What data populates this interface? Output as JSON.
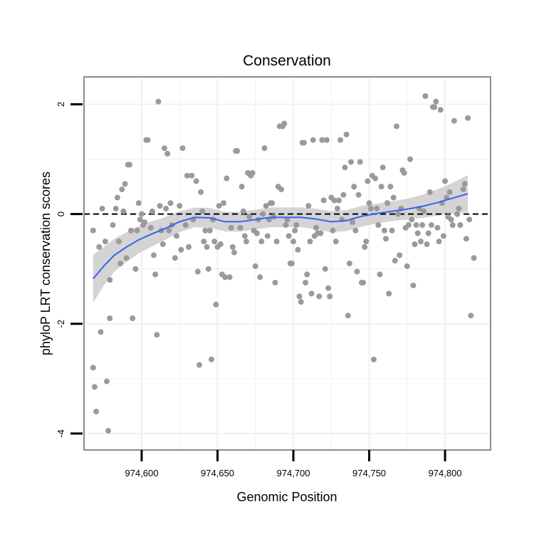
{
  "chart_data": {
    "type": "scatter",
    "title": "Conservation",
    "xlabel": "Genomic Position",
    "ylabel": "phyloP LRT conservation scores",
    "xlim": [
      974562,
      974830
    ],
    "ylim": [
      -4.3,
      2.5
    ],
    "x_ticks": [
      974600,
      974650,
      974700,
      974750,
      974800
    ],
    "x_tick_labels": [
      "974,600",
      "974,650",
      "974,700",
      "974,750",
      "974,800"
    ],
    "y_ticks": [
      -4,
      -2,
      0,
      2
    ],
    "y_tick_labels": [
      "-4",
      "-2",
      "0",
      "2"
    ],
    "reference_line": {
      "y": 0,
      "style": "dashed"
    },
    "series": [
      {
        "name": "scores",
        "kind": "points",
        "points": [
          [
            974568,
            -0.3
          ],
          [
            974568,
            -2.8
          ],
          [
            974569,
            -3.15
          ],
          [
            974570,
            -3.6
          ],
          [
            974572,
            -0.6
          ],
          [
            974573,
            -2.15
          ],
          [
            974574,
            0.1
          ],
          [
            974576,
            -0.5
          ],
          [
            974577,
            -3.05
          ],
          [
            974578,
            -3.95
          ],
          [
            974579,
            -1.9
          ],
          [
            974579,
            -1.2
          ],
          [
            974581,
            -0.2
          ],
          [
            974583,
            0.1
          ],
          [
            974584,
            0.3
          ],
          [
            974585,
            -0.5
          ],
          [
            974586,
            -0.9
          ],
          [
            974587,
            0.45
          ],
          [
            974588,
            0.05
          ],
          [
            974589,
            0.55
          ],
          [
            974590,
            -0.8
          ],
          [
            974591,
            0.9
          ],
          [
            974592,
            0.9
          ],
          [
            974593,
            -0.3
          ],
          [
            974594,
            -1.9
          ],
          [
            974596,
            -1.0
          ],
          [
            974597,
            -0.3
          ],
          [
            974598,
            0.2
          ],
          [
            974599,
            -0.1
          ],
          [
            974600,
            0.0
          ],
          [
            974601,
            -0.2
          ],
          [
            974602,
            -0.15
          ],
          [
            974603,
            1.35
          ],
          [
            974604,
            1.35
          ],
          [
            974606,
            -0.25
          ],
          [
            974607,
            0.05
          ],
          [
            974608,
            -0.75
          ],
          [
            974609,
            -1.1
          ],
          [
            974610,
            -2.2
          ],
          [
            974611,
            2.05
          ],
          [
            974612,
            0.15
          ],
          [
            974613,
            -0.3
          ],
          [
            974614,
            -0.55
          ],
          [
            974615,
            1.2
          ],
          [
            974616,
            0.1
          ],
          [
            974617,
            1.1
          ],
          [
            974618,
            -0.3
          ],
          [
            974619,
            0.2
          ],
          [
            974620,
            -0.2
          ],
          [
            974622,
            -0.8
          ],
          [
            974623,
            -0.4
          ],
          [
            974625,
            0.15
          ],
          [
            974626,
            -0.65
          ],
          [
            974627,
            1.2
          ],
          [
            974629,
            -0.2
          ],
          [
            974630,
            0.7
          ],
          [
            974631,
            -0.6
          ],
          [
            974633,
            0.7
          ],
          [
            974634,
            -0.1
          ],
          [
            974636,
            0.6
          ],
          [
            974637,
            -1.05
          ],
          [
            974638,
            -2.75
          ],
          [
            974639,
            0.4
          ],
          [
            974640,
            0.05
          ],
          [
            974641,
            -0.5
          ],
          [
            974642,
            -0.3
          ],
          [
            974643,
            -0.6
          ],
          [
            974644,
            -1.0
          ],
          [
            974645,
            -0.3
          ],
          [
            974646,
            -2.65
          ],
          [
            974647,
            -0.1
          ],
          [
            974648,
            -0.5
          ],
          [
            974649,
            -1.65
          ],
          [
            974650,
            -0.6
          ],
          [
            974651,
            0.15
          ],
          [
            974652,
            -0.55
          ],
          [
            974653,
            -1.1
          ],
          [
            974654,
            0.2
          ],
          [
            974655,
            -1.15
          ],
          [
            974656,
            0.65
          ],
          [
            974658,
            -1.15
          ],
          [
            974659,
            -0.25
          ],
          [
            974660,
            -0.6
          ],
          [
            974661,
            -0.7
          ],
          [
            974662,
            1.15
          ],
          [
            974663,
            1.15
          ],
          [
            974665,
            -0.25
          ],
          [
            974666,
            0.5
          ],
          [
            974667,
            0.05
          ],
          [
            974668,
            -0.4
          ],
          [
            974669,
            -0.5
          ],
          [
            974670,
            0.75
          ],
          [
            974671,
            -0.05
          ],
          [
            974672,
            0.7
          ],
          [
            974673,
            0.75
          ],
          [
            974674,
            -0.3
          ],
          [
            974675,
            -0.95
          ],
          [
            974676,
            -0.35
          ],
          [
            974677,
            -0.1
          ],
          [
            974678,
            -1.15
          ],
          [
            974679,
            -0.5
          ],
          [
            974680,
            0.0
          ],
          [
            974681,
            1.2
          ],
          [
            974682,
            0.15
          ],
          [
            974683,
            -0.4
          ],
          [
            974684,
            -0.1
          ],
          [
            974685,
            0.2
          ],
          [
            974686,
            0.2
          ],
          [
            974687,
            -0.05
          ],
          [
            974688,
            -1.25
          ],
          [
            974689,
            -0.5
          ],
          [
            974690,
            0.5
          ],
          [
            974691,
            1.6
          ],
          [
            974692,
            0.45
          ],
          [
            974693,
            1.6
          ],
          [
            974694,
            1.65
          ],
          [
            974695,
            -0.2
          ],
          [
            974696,
            -0.1
          ],
          [
            974697,
            -0.4
          ],
          [
            974698,
            -0.9
          ],
          [
            974699,
            -0.9
          ],
          [
            974700,
            -0.5
          ],
          [
            974701,
            -0.3
          ],
          [
            974702,
            -0.2
          ],
          [
            974703,
            -0.65
          ],
          [
            974704,
            -1.5
          ],
          [
            974705,
            -1.6
          ],
          [
            974706,
            1.3
          ],
          [
            974707,
            1.3
          ],
          [
            974708,
            -1.25
          ],
          [
            974709,
            -1.1
          ],
          [
            974710,
            0.15
          ],
          [
            974711,
            -0.5
          ],
          [
            974712,
            -1.45
          ],
          [
            974713,
            1.35
          ],
          [
            974714,
            -0.4
          ],
          [
            974715,
            -0.25
          ],
          [
            974716,
            -0.35
          ],
          [
            974717,
            -1.5
          ],
          [
            974718,
            -0.35
          ],
          [
            974719,
            1.35
          ],
          [
            974720,
            0.25
          ],
          [
            974721,
            -1.0
          ],
          [
            974722,
            1.35
          ],
          [
            974723,
            -1.35
          ],
          [
            974724,
            -1.5
          ],
          [
            974725,
            0.3
          ],
          [
            974726,
            -0.3
          ],
          [
            974727,
            0.25
          ],
          [
            974728,
            -0.5
          ],
          [
            974729,
            0.1
          ],
          [
            974730,
            0.25
          ],
          [
            974731,
            1.35
          ],
          [
            974732,
            -0.1
          ],
          [
            974733,
            0.35
          ],
          [
            974734,
            0.85
          ],
          [
            974735,
            1.45
          ],
          [
            974736,
            -1.85
          ],
          [
            974737,
            -0.9
          ],
          [
            974738,
            0.95
          ],
          [
            974739,
            -0.15
          ],
          [
            974740,
            0.5
          ],
          [
            974741,
            -0.3
          ],
          [
            974742,
            -1.05
          ],
          [
            974743,
            0.35
          ],
          [
            974744,
            0.95
          ],
          [
            974745,
            -1.25
          ],
          [
            974746,
            -1.25
          ],
          [
            974747,
            -0.6
          ],
          [
            974748,
            -0.5
          ],
          [
            974749,
            0.6
          ],
          [
            974750,
            0.2
          ],
          [
            974751,
            0.1
          ],
          [
            974752,
            0.7
          ],
          [
            974753,
            -2.65
          ],
          [
            974754,
            0.65
          ],
          [
            974755,
            0.1
          ],
          [
            974756,
            -0.2
          ],
          [
            974757,
            -1.1
          ],
          [
            974758,
            0.5
          ],
          [
            974759,
            0.85
          ],
          [
            974760,
            -0.3
          ],
          [
            974761,
            -0.45
          ],
          [
            974762,
            0.2
          ],
          [
            974763,
            -1.45
          ],
          [
            974764,
            0.5
          ],
          [
            974765,
            -0.3
          ],
          [
            974766,
            0.3
          ],
          [
            974767,
            -0.85
          ],
          [
            974768,
            1.6
          ],
          [
            974769,
            0.0
          ],
          [
            974770,
            -0.75
          ],
          [
            974771,
            0.1
          ],
          [
            974772,
            0.8
          ],
          [
            974773,
            0.75
          ],
          [
            974774,
            -0.25
          ],
          [
            974775,
            -0.95
          ],
          [
            974776,
            -0.2
          ],
          [
            974777,
            1.0
          ],
          [
            974778,
            -0.1
          ],
          [
            974779,
            -1.3
          ],
          [
            974780,
            -0.55
          ],
          [
            974781,
            -0.2
          ],
          [
            974782,
            -0.35
          ],
          [
            974783,
            0.1
          ],
          [
            974784,
            -0.5
          ],
          [
            974785,
            -0.2
          ],
          [
            974786,
            0.05
          ],
          [
            974787,
            2.15
          ],
          [
            974788,
            -0.55
          ],
          [
            974789,
            -0.35
          ],
          [
            974790,
            0.4
          ],
          [
            974791,
            -0.2
          ],
          [
            974792,
            1.95
          ],
          [
            974793,
            1.95
          ],
          [
            974794,
            2.05
          ],
          [
            974795,
            -0.25
          ],
          [
            974796,
            -0.5
          ],
          [
            974797,
            1.9
          ],
          [
            974798,
            0.2
          ],
          [
            974799,
            -0.4
          ],
          [
            974800,
            0.6
          ],
          [
            974801,
            0.3
          ],
          [
            974802,
            -0.05
          ],
          [
            974803,
            0.4
          ],
          [
            974804,
            -0.1
          ],
          [
            974805,
            -0.2
          ],
          [
            974806,
            1.7
          ],
          [
            974808,
            0.0
          ],
          [
            974809,
            0.1
          ],
          [
            974810,
            -0.2
          ],
          [
            974812,
            0.45
          ],
          [
            974813,
            0.55
          ],
          [
            974814,
            -0.45
          ],
          [
            974815,
            1.75
          ],
          [
            974816,
            -0.1
          ],
          [
            974817,
            -1.85
          ],
          [
            974819,
            -0.8
          ]
        ]
      },
      {
        "name": "smoothed fit",
        "kind": "line",
        "x": [
          974568,
          974575,
          974582,
          974590,
          974598,
          974606,
          974615,
          974625,
          974635,
          974645,
          974655,
          974665,
          974675,
          974685,
          974695,
          974705,
          974715,
          974725,
          974735,
          974745,
          974755,
          974765,
          974775,
          974785,
          974795,
          974805,
          974815
        ],
        "y": [
          -1.18,
          -0.95,
          -0.75,
          -0.6,
          -0.47,
          -0.37,
          -0.27,
          -0.14,
          -0.06,
          -0.07,
          -0.14,
          -0.14,
          -0.1,
          -0.06,
          -0.06,
          -0.06,
          -0.09,
          -0.14,
          -0.12,
          -0.04,
          0.01,
          0.05,
          0.09,
          0.14,
          0.21,
          0.29,
          0.37
        ],
        "ci_low": [
          -1.62,
          -1.3,
          -1.05,
          -0.87,
          -0.72,
          -0.6,
          -0.48,
          -0.33,
          -0.24,
          -0.25,
          -0.32,
          -0.32,
          -0.28,
          -0.24,
          -0.24,
          -0.24,
          -0.28,
          -0.33,
          -0.31,
          -0.23,
          -0.17,
          -0.13,
          -0.1,
          -0.07,
          -0.03,
          0.01,
          0.03
        ],
        "ci_high": [
          -0.74,
          -0.6,
          -0.45,
          -0.33,
          -0.22,
          -0.14,
          -0.06,
          0.05,
          0.12,
          0.11,
          0.04,
          0.04,
          0.08,
          0.12,
          0.12,
          0.12,
          0.1,
          0.05,
          0.07,
          0.15,
          0.19,
          0.23,
          0.28,
          0.35,
          0.45,
          0.57,
          0.71
        ]
      }
    ],
    "colors": {
      "points": "#9a9a9a",
      "fit_line": "#3366ee",
      "ci_band": "#cccccc",
      "grid": "#f0f0f0",
      "frame": "#8c8c8c",
      "reference_line": "#000000"
    }
  }
}
